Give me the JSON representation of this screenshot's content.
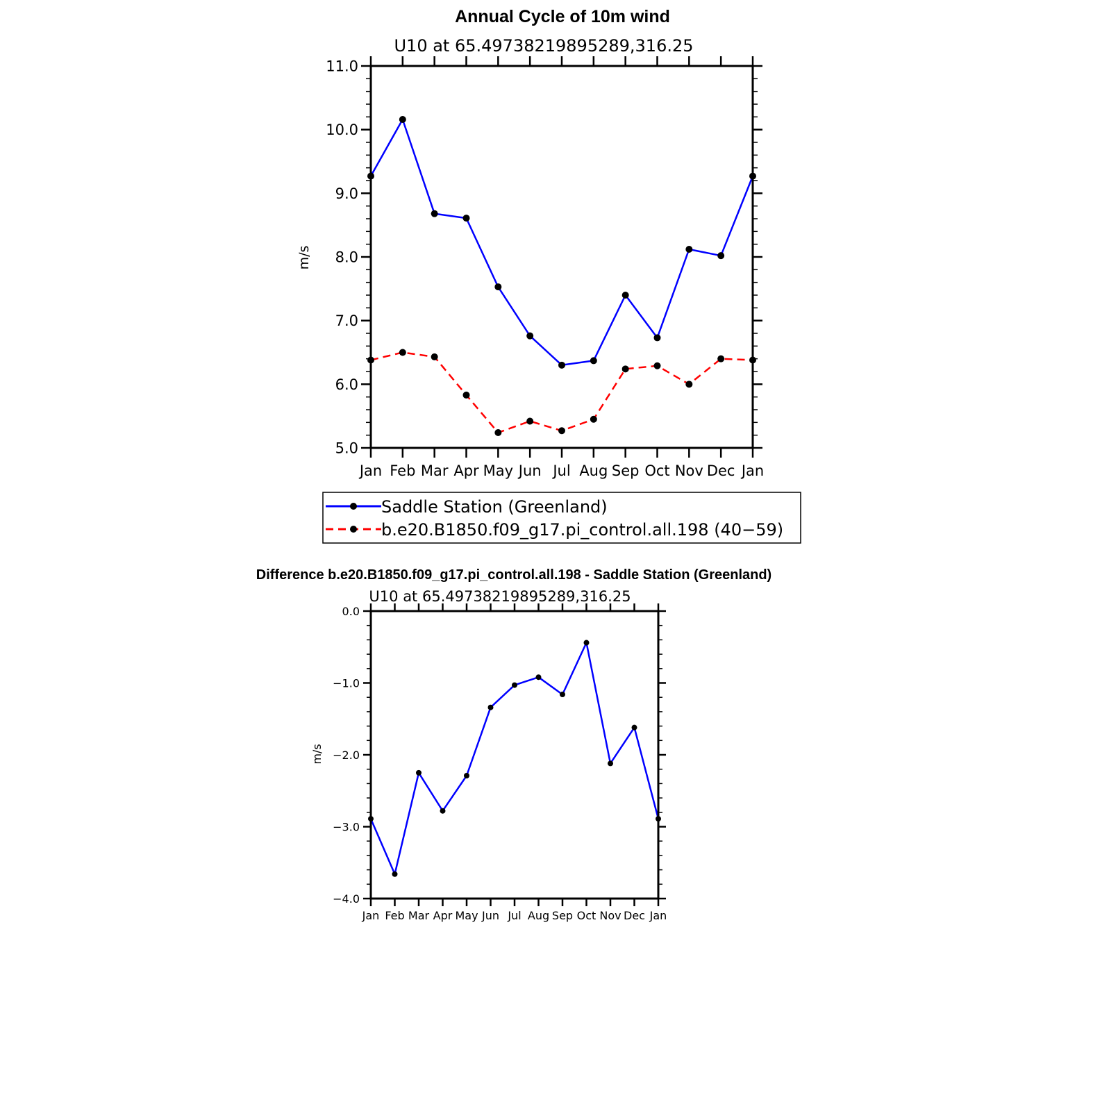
{
  "colors": {
    "observed": "#0000ff",
    "model": "#ff0000",
    "diff": "#0000ff",
    "marker": "#000000",
    "axis": "#000000"
  },
  "chart_data": [
    {
      "type": "line",
      "title": "Annual Cycle of 10m wind",
      "subtitle": "U10 at 65.49738219895289,316.25",
      "xlabel": "",
      "ylabel": "m/s",
      "categories": [
        "Jan",
        "Feb",
        "Mar",
        "Apr",
        "May",
        "Jun",
        "Jul",
        "Aug",
        "Sep",
        "Oct",
        "Nov",
        "Dec",
        "Jan"
      ],
      "ylim": [
        5.0,
        11.0
      ],
      "yticks": [
        "5.0",
        "6.0",
        "7.0",
        "8.0",
        "9.0",
        "10.0",
        "11.0"
      ],
      "legend_position": "bottom",
      "series": [
        {
          "name": "Saddle Station (Greenland)",
          "style": "solid",
          "values": [
            9.27,
            10.16,
            8.68,
            8.61,
            7.53,
            6.76,
            6.3,
            6.37,
            7.4,
            6.73,
            8.12,
            8.02,
            9.27
          ]
        },
        {
          "name": "b.e20.B1850.f09_g17.pi_control.all.198 (40−59)",
          "style": "dashed",
          "values": [
            6.38,
            6.5,
            6.43,
            5.83,
            5.24,
            5.42,
            5.27,
            5.45,
            6.24,
            6.29,
            6.0,
            6.4,
            6.38
          ]
        }
      ]
    },
    {
      "type": "line",
      "title": "Difference b.e20.B1850.f09_g17.pi_control.all.198 - Saddle Station (Greenland)",
      "subtitle": "U10 at 65.49738219895289,316.25",
      "xlabel": "",
      "ylabel": "m/s",
      "categories": [
        "Jan",
        "Feb",
        "Mar",
        "Apr",
        "May",
        "Jun",
        "Jul",
        "Aug",
        "Sep",
        "Oct",
        "Nov",
        "Dec",
        "Jan"
      ],
      "ylim": [
        -4.0,
        0.0
      ],
      "yticks": [
        "−4.0",
        "−3.0",
        "−2.0",
        "−1.0",
        "0.0"
      ],
      "series": [
        {
          "name": "",
          "style": "solid",
          "values": [
            -2.89,
            -3.66,
            -2.25,
            -2.78,
            -2.29,
            -1.34,
            -1.03,
            -0.92,
            -1.16,
            -0.44,
            -2.12,
            -1.62,
            -2.89
          ]
        }
      ]
    }
  ]
}
